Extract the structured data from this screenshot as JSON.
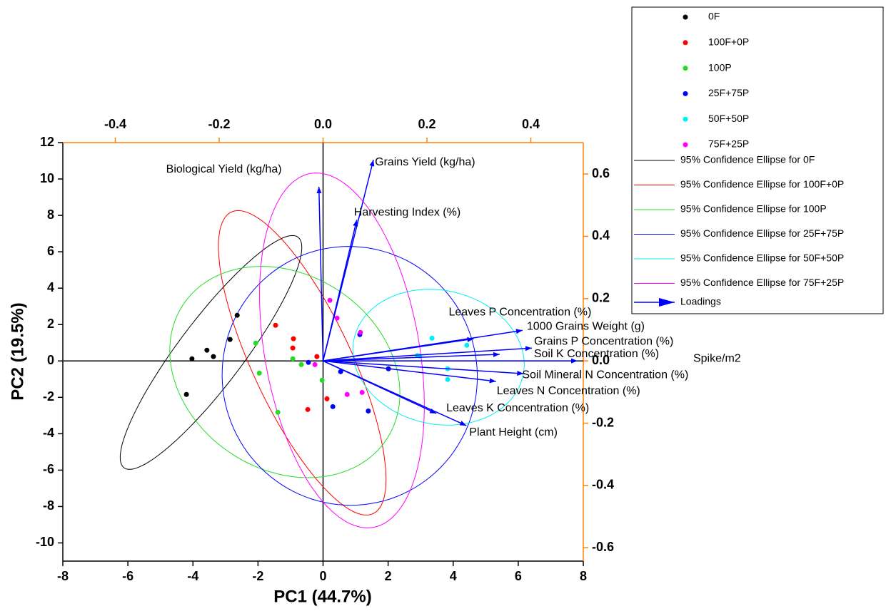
{
  "chart_data": {
    "type": "biplot",
    "xlabel": "PC1 (44.7%)",
    "ylabel": "PC2 (19.5%)",
    "xlim": [
      -8,
      8
    ],
    "ylim": [
      -11,
      12
    ],
    "xticks": [
      -8,
      -6,
      -4,
      -2,
      0,
      2,
      4,
      6,
      8
    ],
    "yticks": [
      -10,
      -8,
      -6,
      -4,
      -2,
      0,
      2,
      4,
      6,
      8,
      10,
      12
    ],
    "x2lim": [
      -0.501,
      0.501
    ],
    "y2lim": [
      -0.643,
      0.701
    ],
    "x2ticks": [
      -0.4,
      -0.2,
      {
        "value": 0,
        "label": "0.0"
      },
      0.2,
      0.4
    ],
    "y2ticks": [
      -0.6,
      -0.4,
      -0.2,
      {
        "value": 0,
        "label": "0.0"
      },
      0.2,
      0.4,
      0.6
    ],
    "axis_color": "#ff8000",
    "series": [
      {
        "name": "0F",
        "ellipse_name": "95% Confidence Ellipse for 0F",
        "color": "#000000",
        "x": [
          -4.03,
          -3.57,
          -3.37,
          -2.86,
          -2.64,
          -4.2
        ],
        "y": [
          0.12,
          0.59,
          0.24,
          1.18,
          2.51,
          -1.84
        ]
      },
      {
        "name": "100F+0P",
        "ellipse_name": "95% Confidence Ellipse for 100F+0P",
        "color": "#ff0000",
        "x": [
          -1.46,
          -0.91,
          -0.93,
          -0.19,
          0.12,
          -0.47
        ],
        "y": [
          1.96,
          1.22,
          0.71,
          0.24,
          -2.08,
          -2.67
        ]
      },
      {
        "name": "100P",
        "ellipse_name": "95% Confidence Ellipse for 100P",
        "color": "#22dd22",
        "x": [
          -2.07,
          -0.93,
          -0.67,
          -1.96,
          -1.39,
          -0.03
        ],
        "y": [
          0.98,
          0.12,
          -0.2,
          -0.67,
          -2.82,
          -1.06
        ]
      },
      {
        "name": "25F+75P",
        "ellipse_name": "95% Confidence Ellipse for 25F+75P",
        "color": "#0000ff",
        "x": [
          1.13,
          0.54,
          2.01,
          1.39,
          0.3,
          -0.45
        ],
        "y": [
          1.45,
          -0.59,
          -0.43,
          -2.75,
          -2.51,
          -0.08
        ]
      },
      {
        "name": "50F+50P",
        "ellipse_name": "95% Confidence Ellipse for 50F+50P",
        "color": "#00f0f0",
        "x": [
          3.35,
          4.42,
          2.97,
          3.83,
          3.83,
          2.9
        ],
        "y": [
          1.25,
          0.86,
          0.27,
          -0.43,
          -1.02,
          0.3
        ]
      },
      {
        "name": "75F+25P",
        "ellipse_name": "95% Confidence Ellipse for 75F+25P",
        "color": "#ff00ff",
        "x": [
          0.21,
          0.43,
          1.15,
          -0.25,
          0.74,
          1.2
        ],
        "y": [
          3.33,
          2.35,
          1.57,
          -0.2,
          -1.84,
          -1.73
        ]
      }
    ],
    "loadings": {
      "name": "Loadings",
      "color": "#0000ff",
      "labels": [
        "Biological Yield (kg/ha)",
        "Grains Yield (kg/ha)",
        "Harvesting Index (%)",
        "Leaves P Concentration (%)",
        "1000 Grains Weight (g)",
        "Grains P Concentration (%)",
        "Soil K Concentration (%)",
        "Spike/m2",
        "Soil Mineral N Concentration (%)",
        "Leaves N Concentration (%)",
        "Leaves K Concentration (%)",
        "Plant Height (cm)"
      ],
      "x": [
        -0.008,
        0.097,
        0.065,
        0.29,
        0.384,
        0.402,
        0.34,
        0.49,
        0.386,
        0.333,
        0.218,
        0.276
      ],
      "y": [
        0.559,
        0.646,
        0.453,
        0.071,
        0.098,
        0.041,
        0.021,
        0.0,
        -0.041,
        -0.066,
        -0.169,
        -0.208
      ]
    }
  }
}
